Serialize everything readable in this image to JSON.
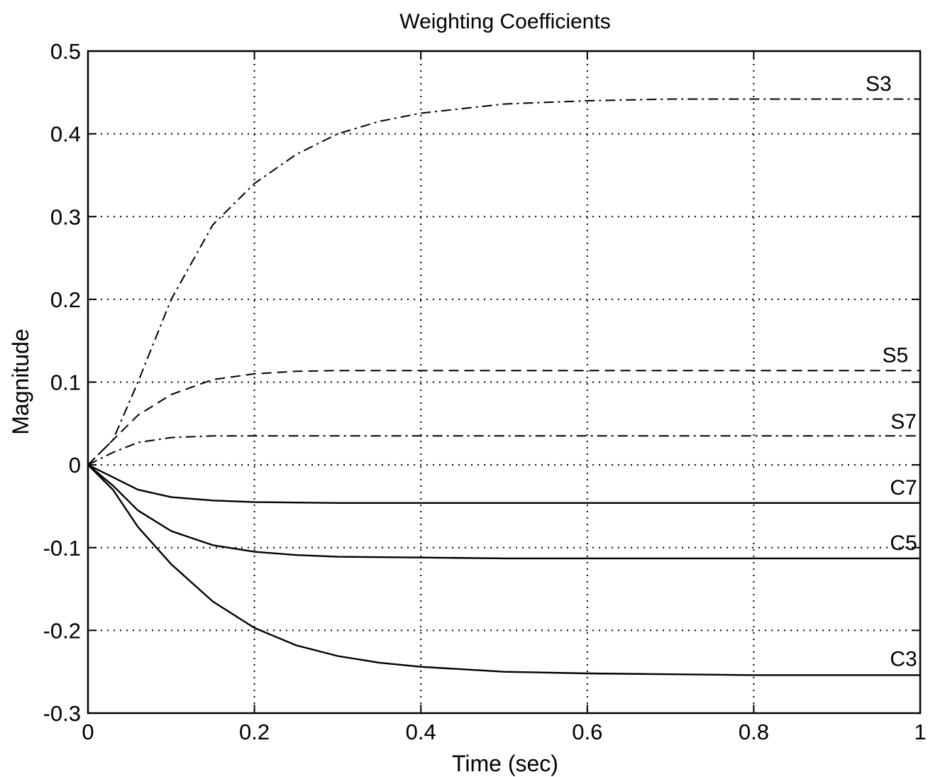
{
  "chart_data": {
    "type": "line",
    "title": "Weighting Coefficients",
    "xlabel": "Time (sec)",
    "ylabel": "Magnitude",
    "xlim": [
      0,
      1
    ],
    "ylim": [
      -0.3,
      0.5
    ],
    "grid": true,
    "x_ticks": [
      0,
      0.2,
      0.4,
      0.6,
      0.8,
      1
    ],
    "x_tick_labels": [
      "0",
      "0.2",
      "0.4",
      "0.6",
      "0.8",
      "1"
    ],
    "y_ticks": [
      -0.3,
      -0.2,
      -0.1,
      0,
      0.1,
      0.2,
      0.3,
      0.4,
      0.5
    ],
    "y_tick_labels": [
      "-0.3",
      "-0.2",
      "-0.1",
      "0",
      "0.1",
      "0.2",
      "0.3",
      "0.4",
      "0.5"
    ],
    "series": [
      {
        "name": "S3",
        "line_style": "dash-dot",
        "x": [
          0,
          0.03,
          0.06,
          0.1,
          0.15,
          0.2,
          0.25,
          0.3,
          0.35,
          0.4,
          0.5,
          0.6,
          0.7,
          0.8,
          0.9,
          1.0
        ],
        "y": [
          0,
          0.03,
          0.1,
          0.2,
          0.29,
          0.34,
          0.375,
          0.4,
          0.415,
          0.425,
          0.436,
          0.44,
          0.442,
          0.442,
          0.442,
          0.442
        ]
      },
      {
        "name": "S5",
        "line_style": "dashed",
        "x": [
          0,
          0.03,
          0.06,
          0.1,
          0.15,
          0.2,
          0.25,
          0.3,
          0.4,
          0.5,
          0.6,
          0.7,
          0.8,
          0.9,
          1.0
        ],
        "y": [
          0,
          0.03,
          0.06,
          0.085,
          0.103,
          0.11,
          0.113,
          0.114,
          0.114,
          0.114,
          0.114,
          0.114,
          0.114,
          0.114,
          0.114
        ]
      },
      {
        "name": "S7",
        "line_style": "dash-dot",
        "x": [
          0,
          0.03,
          0.06,
          0.1,
          0.15,
          0.2,
          0.3,
          0.4,
          0.5,
          0.6,
          0.7,
          0.8,
          0.9,
          1.0
        ],
        "y": [
          0,
          0.015,
          0.027,
          0.033,
          0.035,
          0.035,
          0.035,
          0.035,
          0.035,
          0.035,
          0.035,
          0.035,
          0.035,
          0.035
        ]
      },
      {
        "name": "C7",
        "line_style": "solid",
        "x": [
          0,
          0.03,
          0.06,
          0.1,
          0.15,
          0.2,
          0.3,
          0.4,
          0.6,
          0.8,
          1.0
        ],
        "y": [
          0,
          -0.015,
          -0.03,
          -0.039,
          -0.043,
          -0.045,
          -0.046,
          -0.046,
          -0.046,
          -0.046,
          -0.046
        ]
      },
      {
        "name": "C5",
        "line_style": "solid",
        "x": [
          0,
          0.03,
          0.06,
          0.1,
          0.15,
          0.2,
          0.25,
          0.3,
          0.4,
          0.5,
          0.6,
          0.8,
          1.0
        ],
        "y": [
          0,
          -0.025,
          -0.055,
          -0.08,
          -0.097,
          -0.105,
          -0.109,
          -0.111,
          -0.112,
          -0.113,
          -0.113,
          -0.113,
          -0.113
        ]
      },
      {
        "name": "C3",
        "line_style": "solid",
        "x": [
          0,
          0.03,
          0.06,
          0.1,
          0.15,
          0.2,
          0.25,
          0.3,
          0.35,
          0.4,
          0.5,
          0.6,
          0.7,
          0.8,
          0.9,
          1.0
        ],
        "y": [
          0,
          -0.03,
          -0.075,
          -0.12,
          -0.165,
          -0.197,
          -0.218,
          -0.231,
          -0.239,
          -0.244,
          -0.25,
          -0.252,
          -0.253,
          -0.254,
          -0.254,
          -0.254
        ]
      }
    ],
    "series_label_positions": [
      {
        "name": "S3",
        "x": 0.95,
        "y": 0.452
      },
      {
        "name": "S5",
        "x": 0.97,
        "y": 0.124
      },
      {
        "name": "S7",
        "x": 0.98,
        "y": 0.044
      },
      {
        "name": "C7",
        "x": 0.98,
        "y": -0.036
      },
      {
        "name": "C5",
        "x": 0.98,
        "y": -0.103
      },
      {
        "name": "C3",
        "x": 0.98,
        "y": -0.243
      }
    ]
  }
}
